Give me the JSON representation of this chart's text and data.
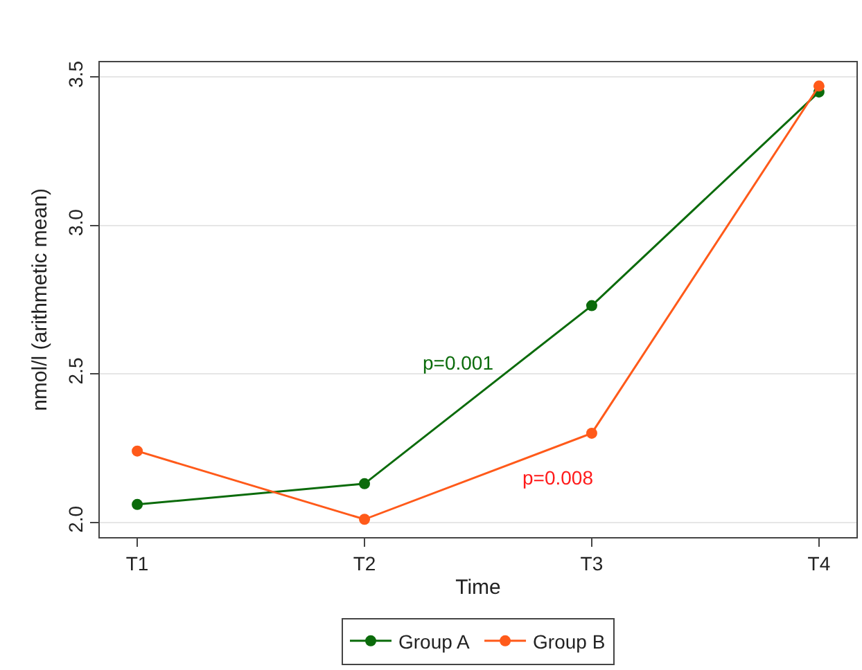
{
  "chart_data": {
    "type": "line",
    "xlabel": "Time",
    "ylabel": "nmol/l (arithmetic mean)",
    "categories": [
      "T1",
      "T2",
      "T3",
      "T4"
    ],
    "series": [
      {
        "name": "Group A",
        "color": "#0b6b0b",
        "values": [
          2.06,
          2.13,
          2.73,
          3.45
        ]
      },
      {
        "name": "Group B",
        "color": "#ff5a1a",
        "values": [
          2.24,
          2.01,
          2.3,
          3.47
        ]
      }
    ],
    "ylim": [
      1.95,
      3.55
    ],
    "yticks": [
      {
        "value": 2,
        "label": "2.0"
      },
      {
        "value": 2.5,
        "label": "2.5"
      },
      {
        "value": 3,
        "label": "3.0"
      },
      {
        "value": 3.5,
        "label": "3.5"
      }
    ],
    "grid": "y",
    "legend": "bottom",
    "marker": "circle",
    "line_style": "solid",
    "annotations": [
      "p=0.001",
      "p=0.008"
    ]
  }
}
